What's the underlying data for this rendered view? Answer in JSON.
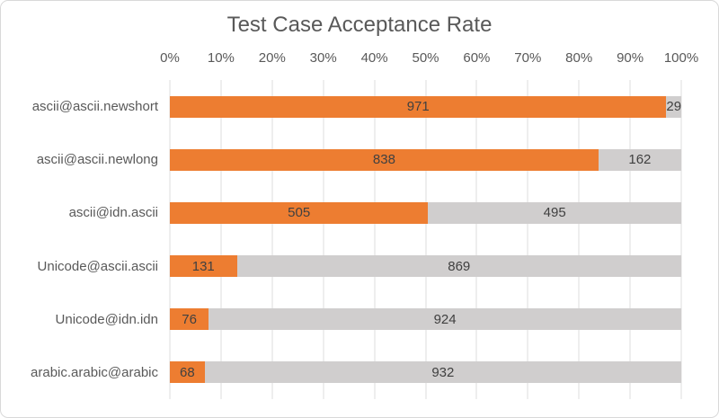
{
  "chart_data": {
    "type": "bar",
    "orientation": "horizontal",
    "stacked": true,
    "title": "Test Case Acceptance Rate",
    "categories": [
      "ascii@ascii.newshort",
      "ascii@ascii.newlong",
      "ascii@idn.ascii",
      "Unicode@ascii.ascii",
      "Unicode@idn.idn",
      "arabic.arabic@arabic"
    ],
    "series": [
      {
        "name": "orange",
        "color": "#ED7D31",
        "values": [
          971,
          838,
          505,
          131,
          76,
          68
        ]
      },
      {
        "name": "gray",
        "color": "#D0CECE",
        "values": [
          29,
          162,
          495,
          869,
          924,
          932
        ]
      }
    ],
    "total_per_category": 1000,
    "x_axis": {
      "position": "top",
      "min": 0,
      "max": 1,
      "ticks": [
        "0%",
        "10%",
        "20%",
        "30%",
        "40%",
        "50%",
        "60%",
        "70%",
        "80%",
        "90%",
        "100%"
      ]
    },
    "grid": true,
    "legend": "none",
    "value_labels": "center"
  },
  "colors": {
    "bar_orange": "#ED7D31",
    "bar_gray": "#D0CECE",
    "gridline": "#DEDEDE",
    "axis_text": "#595959",
    "value_text": "#404040",
    "border": "#D9D9D9"
  }
}
